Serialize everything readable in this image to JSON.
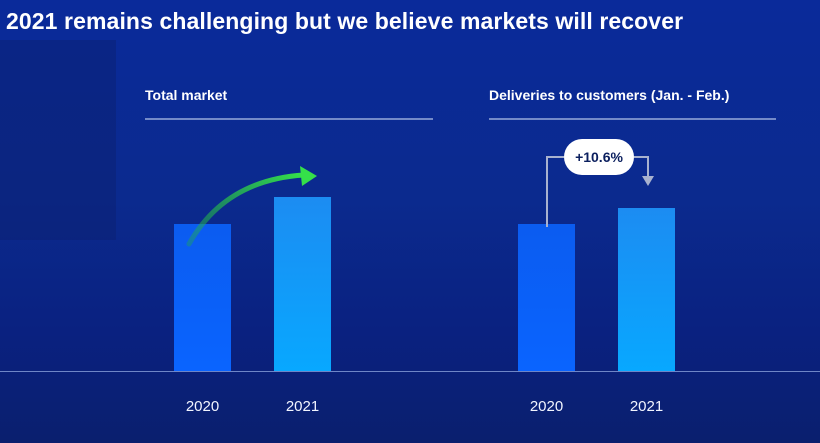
{
  "title": "2021 remains challenging but we believe markets will recover",
  "chart_data": [
    {
      "type": "bar",
      "title": "Total market",
      "categories": [
        "2020",
        "2021"
      ],
      "values": [
        100,
        118
      ],
      "ylim": [
        0,
        125
      ],
      "annotation": "upward-arrow",
      "grid": false
    },
    {
      "type": "bar",
      "title": "Deliveries to customers (Jan. - Feb.)",
      "categories": [
        "2020",
        "2021"
      ],
      "values": [
        100,
        110.6
      ],
      "ylim": [
        0,
        125
      ],
      "annotation": "+10.6%",
      "grid": false
    }
  ],
  "colors": {
    "bar_2020": "#0a64ff",
    "bar_2021": "#08a8ff",
    "arrow": "#35e04a",
    "background": "#0b2a8e"
  }
}
